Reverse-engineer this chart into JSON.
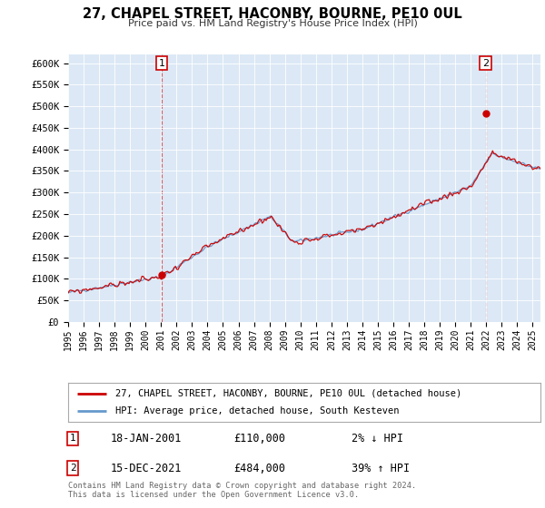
{
  "title": "27, CHAPEL STREET, HACONBY, BOURNE, PE10 0UL",
  "subtitle": "Price paid vs. HM Land Registry's House Price Index (HPI)",
  "ylim": [
    0,
    620000
  ],
  "xlim_start": 1995.0,
  "xlim_end": 2025.5,
  "bg_color": "#dce8f5",
  "hpi_color": "#6699cc",
  "price_color": "#cc0000",
  "sale1_date": 2001.05,
  "sale1_price": 110000,
  "sale1_label": "1",
  "sale2_date": 2021.96,
  "sale2_price": 484000,
  "sale2_label": "2",
  "legend_label_price": "27, CHAPEL STREET, HACONBY, BOURNE, PE10 0UL (detached house)",
  "legend_label_hpi": "HPI: Average price, detached house, South Kesteven",
  "annotation1_date": "18-JAN-2001",
  "annotation1_price": "£110,000",
  "annotation1_hpi": "2% ↓ HPI",
  "annotation2_date": "15-DEC-2021",
  "annotation2_price": "£484,000",
  "annotation2_hpi": "39% ↑ HPI",
  "footer": "Contains HM Land Registry data © Crown copyright and database right 2024.\nThis data is licensed under the Open Government Licence v3.0.",
  "ytick_labels": [
    "£0",
    "£50K",
    "£100K",
    "£150K",
    "£200K",
    "£250K",
    "£300K",
    "£350K",
    "£400K",
    "£450K",
    "£500K",
    "£550K",
    "£600K"
  ],
  "ytick_values": [
    0,
    50000,
    100000,
    150000,
    200000,
    250000,
    300000,
    350000,
    400000,
    450000,
    500000,
    550000,
    600000
  ],
  "x_ticks": [
    1995,
    1996,
    1997,
    1998,
    1999,
    2000,
    2001,
    2002,
    2003,
    2004,
    2005,
    2006,
    2007,
    2008,
    2009,
    2010,
    2011,
    2012,
    2013,
    2014,
    2015,
    2016,
    2017,
    2018,
    2019,
    2020,
    2021,
    2022,
    2023,
    2024,
    2025
  ]
}
